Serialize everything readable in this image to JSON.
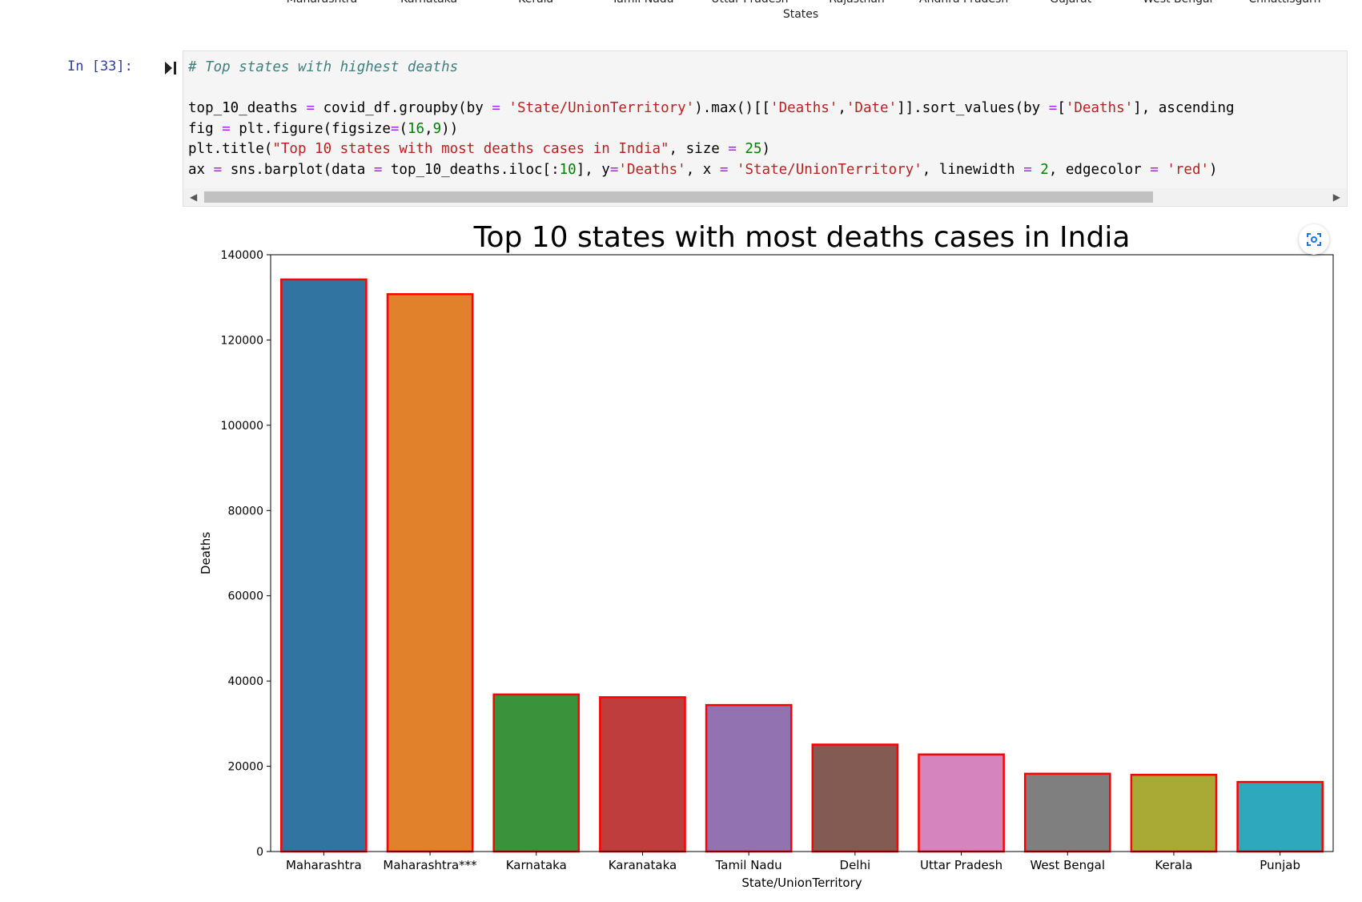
{
  "previous_output": {
    "tick_labels": [
      "Maharashtra",
      "Karnataka",
      "Kerala",
      "Tamil Nadu",
      "Uttar Pradesh",
      "Rajasthan",
      "Andhra Pradesh",
      "Gujarat",
      "West Bengal",
      "Chhattisgarh"
    ],
    "xlabel": "States"
  },
  "cell": {
    "prompt": "In [33]:",
    "code": {
      "comment": "# Top states with highest deaths",
      "l1a": "top_10_deaths ",
      "l1b": " covid_df.groupby(by ",
      "l1c": "'State/UnionTerritory'",
      "l1d": ").max()[[",
      "l1e": "'Deaths'",
      "l1f": ",",
      "l1g": "'Date'",
      "l1h": "]].sort_values(by ",
      "l1i": "[",
      "l1j": "'Deaths'",
      "l1k": "], ascending",
      "l2a": "fig ",
      "l2b": " plt.figure(figsize",
      "l2c": "(",
      "l2d": "16",
      "l2e": ",",
      "l2f": "9",
      "l2g": "))",
      "l3a": "plt.title(",
      "l3b": "\"Top 10 states with most deaths cases in India\"",
      "l3c": ", size ",
      "l3d": "25",
      "l3e": ")",
      "l4a": "ax ",
      "l4b": " sns.barplot(data ",
      "l4c": " top_10_deaths.iloc[:",
      "l4d": "10",
      "l4e": "], y",
      "l4f": "'Deaths'",
      "l4g": ", x ",
      "l4h": "'State/UnionTerritory'",
      "l4i": ", linewidth ",
      "l4j": "2",
      "l4k": ", edgecolor ",
      "l4l": "'red'",
      "l4m": ")",
      "eq": "=",
      "op_eq": "="
    }
  },
  "chart_data": {
    "type": "bar",
    "title": "Top 10 states with most deaths cases in India",
    "xlabel": "State/UnionTerritory",
    "ylabel": "Deaths",
    "ylim": [
      0,
      140000
    ],
    "yticks": [
      0,
      20000,
      40000,
      60000,
      80000,
      100000,
      120000,
      140000
    ],
    "grid": false,
    "edgecolor": "#ff0000",
    "categories": [
      "Maharashtra",
      "Maharashtra***",
      "Karnataka",
      "Karanataka",
      "Tamil Nadu",
      "Delhi",
      "Uttar Pradesh",
      "West Bengal",
      "Kerala",
      "Punjab"
    ],
    "values": [
      134201,
      130753,
      36848,
      36197,
      34367,
      25091,
      22775,
      18252,
      18004,
      16322
    ],
    "colors": [
      "#3274a1",
      "#e1812c",
      "#3a923a",
      "#c03d3e",
      "#9372b2",
      "#845b53",
      "#d684bd",
      "#7f7f7f",
      "#a9aa35",
      "#2ea8bc"
    ]
  }
}
